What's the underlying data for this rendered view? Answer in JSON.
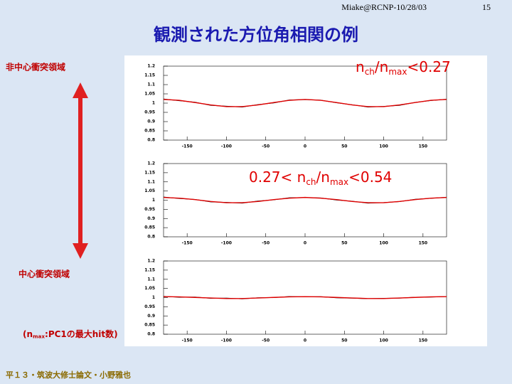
{
  "header": {
    "author": "Miake@RCNP-10/28/03",
    "page": "15"
  },
  "title": "観測された方位角相関の例",
  "side": {
    "top": "非中心衝突領域",
    "bottom": "中心衝突領域",
    "note": [
      "(n",
      "max",
      ":PC1の最大hit数)"
    ]
  },
  "footer": "平１３・筑波大修士論文・小野雅也",
  "chart_data": [
    {
      "type": "line",
      "annotation": [
        "n",
        "ch",
        "/n",
        "max",
        "<0.27"
      ],
      "x": [
        -180,
        -160,
        -140,
        -120,
        -100,
        -80,
        -60,
        -40,
        -20,
        0,
        20,
        40,
        60,
        80,
        100,
        120,
        140,
        160,
        180
      ],
      "series": [
        {
          "color": "#000000",
          "values": [
            1.022,
            1.013,
            1.005,
            0.988,
            0.983,
            0.979,
            0.992,
            1.001,
            1.017,
            1.019,
            1.016,
            1.002,
            0.991,
            0.979,
            0.982,
            0.988,
            1.004,
            1.014,
            1.021
          ]
        },
        {
          "color": "#e00000",
          "values": [
            1.02,
            1.015,
            1.003,
            0.99,
            0.981,
            0.981,
            0.99,
            1.003,
            1.015,
            1.02,
            1.015,
            1.003,
            0.99,
            0.981,
            0.981,
            0.99,
            1.003,
            1.015,
            1.02
          ]
        }
      ],
      "xlim": [
        -180,
        180
      ],
      "xticks": [
        -150,
        -100,
        -50,
        0,
        50,
        100,
        150
      ],
      "ylim": [
        0.8,
        1.2
      ],
      "yticks": [
        0.8,
        0.85,
        0.9,
        0.95,
        1,
        1.05,
        1.1,
        1.15,
        1.2
      ]
    },
    {
      "type": "line",
      "annotation": [
        "0.27< n",
        "ch",
        "/n",
        "max",
        "<0.54"
      ],
      "x": [
        -180,
        -160,
        -140,
        -120,
        -100,
        -80,
        -60,
        -40,
        -20,
        0,
        20,
        40,
        60,
        80,
        100,
        120,
        140,
        160,
        180
      ],
      "series": [
        {
          "color": "#000000",
          "values": [
            1.017,
            1.009,
            1.004,
            0.991,
            0.988,
            0.984,
            0.995,
            1.002,
            1.013,
            1.014,
            1.012,
            1.001,
            0.994,
            0.984,
            0.987,
            0.992,
            1.005,
            1.01,
            1.016
          ]
        },
        {
          "color": "#e00000",
          "values": [
            1.015,
            1.011,
            1.003,
            0.993,
            0.986,
            0.986,
            0.993,
            1.003,
            1.011,
            1.015,
            1.011,
            1.003,
            0.993,
            0.986,
            0.986,
            0.993,
            1.003,
            1.011,
            1.015
          ]
        }
      ],
      "xlim": [
        -180,
        180
      ],
      "xticks": [
        -150,
        -100,
        -50,
        0,
        50,
        100,
        150
      ],
      "ylim": [
        0.8,
        1.2
      ],
      "yticks": [
        0.8,
        0.85,
        0.9,
        0.95,
        1,
        1.05,
        1.1,
        1.15,
        1.2
      ]
    },
    {
      "type": "line",
      "x": [
        -180,
        -160,
        -140,
        -120,
        -100,
        -80,
        -60,
        -40,
        -20,
        0,
        20,
        40,
        60,
        80,
        100,
        120,
        140,
        160,
        180
      ],
      "series": [
        {
          "color": "#000000",
          "values": [
            1.007,
            1.002,
            1.003,
            0.996,
            0.997,
            0.993,
            0.999,
            1.0,
            1.006,
            1.004,
            1.005,
            0.999,
            0.997,
            0.994,
            0.996,
            0.997,
            1.002,
            1.003,
            1.006
          ]
        },
        {
          "color": "#e00000",
          "values": [
            1.005,
            1.004,
            1.001,
            0.998,
            0.995,
            0.995,
            0.998,
            1.001,
            1.004,
            1.005,
            1.004,
            1.001,
            0.998,
            0.995,
            0.995,
            0.998,
            1.001,
            1.004,
            1.005
          ]
        }
      ],
      "xlim": [
        -180,
        180
      ],
      "xticks": [
        -150,
        -100,
        -50,
        0,
        50,
        100,
        150
      ],
      "ylim": [
        0.8,
        1.2
      ],
      "yticks": [
        0.8,
        0.85,
        0.9,
        0.95,
        1,
        1.05,
        1.1,
        1.15,
        1.2
      ]
    }
  ]
}
